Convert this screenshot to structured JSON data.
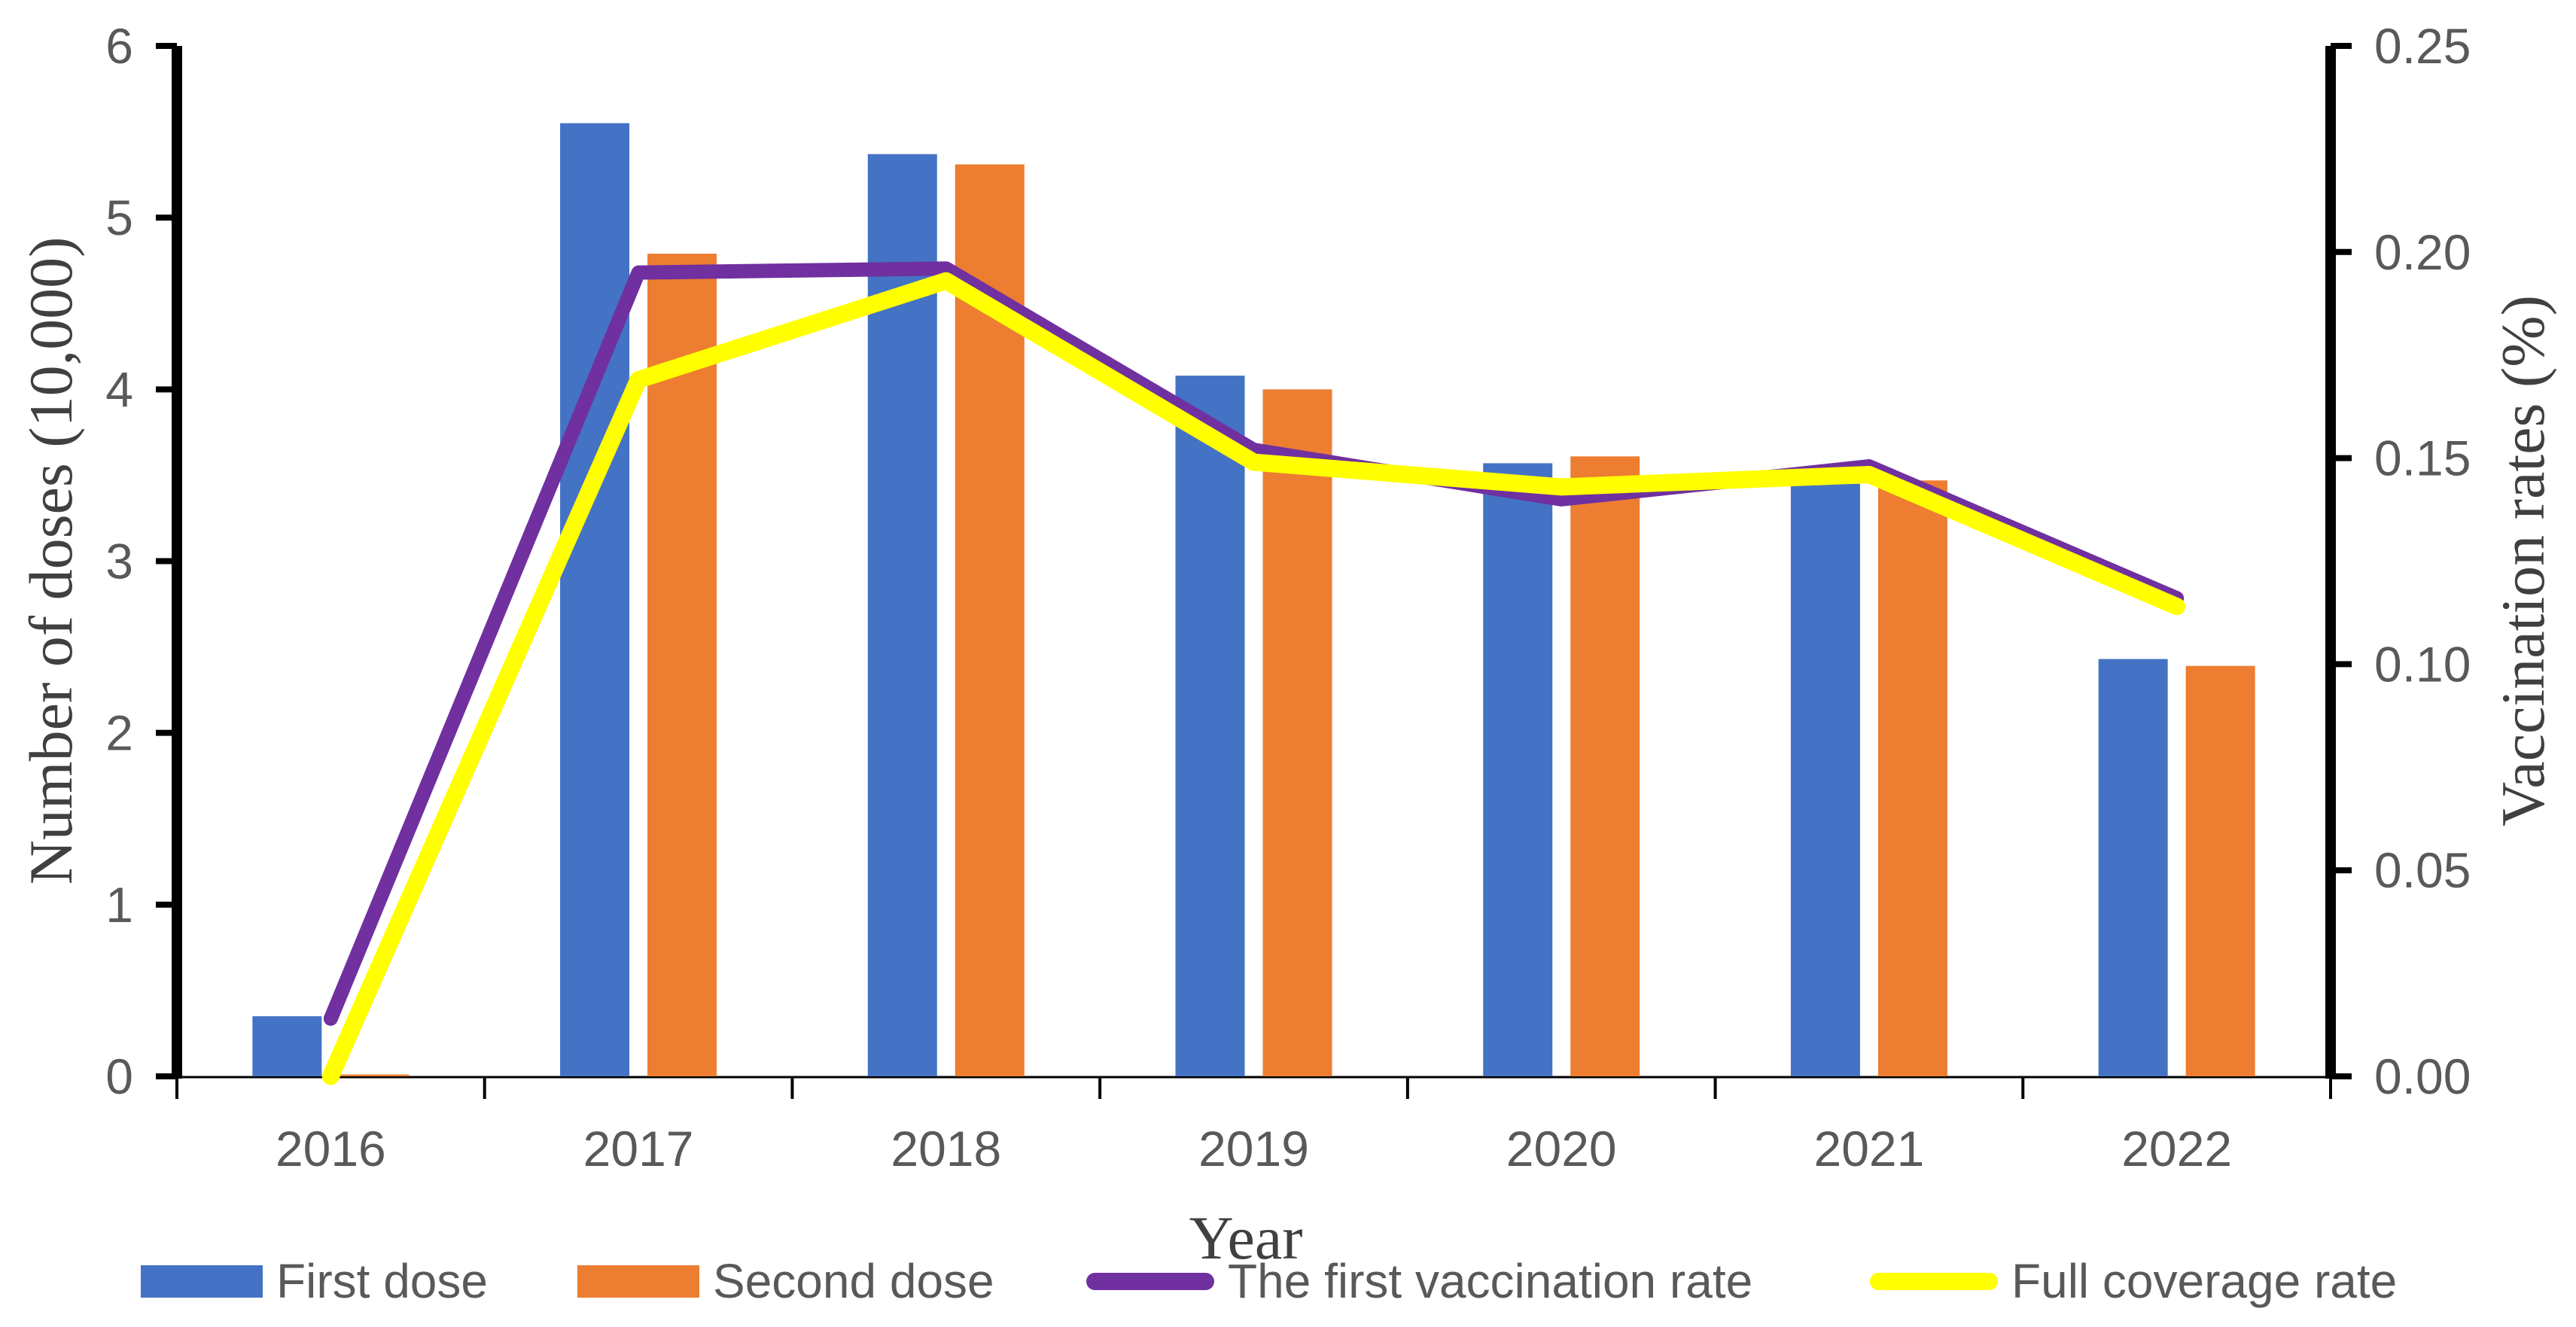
{
  "chart_data": {
    "type": "combo-bar-line",
    "title": "",
    "categories": [
      "2016",
      "2017",
      "2018",
      "2019",
      "2020",
      "2021",
      "2022"
    ],
    "x_axis": {
      "label": "Year"
    },
    "left_axis": {
      "label": "Number of doses (10,000)",
      "min": 0,
      "max": 6,
      "step": 1,
      "tick_labels": [
        "0",
        "1",
        "2",
        "3",
        "4",
        "5",
        "6"
      ]
    },
    "right_axis": {
      "label": "Vaccination rates (%)",
      "min": 0,
      "max": 0.25,
      "step": 0.05,
      "tick_labels": [
        "0.00",
        "0.05",
        "0.10",
        "0.15",
        "0.20",
        "0.25"
      ]
    },
    "bar_series": [
      {
        "name": "First dose",
        "color": "#4472C4",
        "axis": "left",
        "values": [
          0.35,
          5.55,
          5.37,
          4.08,
          3.57,
          3.45,
          2.43
        ]
      },
      {
        "name": "Second dose",
        "color": "#ED7D31",
        "axis": "left",
        "values": [
          0.01,
          4.79,
          5.31,
          4.0,
          3.61,
          3.47,
          2.39
        ]
      }
    ],
    "line_series": [
      {
        "name": "The first vaccination rate",
        "color": "#7030A0",
        "axis": "right",
        "values": [
          0.014,
          0.195,
          0.196,
          0.152,
          0.14,
          0.148,
          0.116
        ]
      },
      {
        "name": "Full coverage rate",
        "color": "#FFFF00",
        "axis": "right",
        "values": [
          0.0,
          0.169,
          0.193,
          0.149,
          0.143,
          0.146,
          0.114
        ]
      }
    ],
    "legend": {
      "position": "bottom",
      "items": [
        "First dose",
        "Second dose",
        "The first vaccination rate",
        "Full coverage rate"
      ]
    },
    "grid": "off",
    "colors": {
      "axis_line": "#000000",
      "tick_text": "#595959",
      "title_text": "#404040",
      "background": "#FFFFFF"
    }
  }
}
